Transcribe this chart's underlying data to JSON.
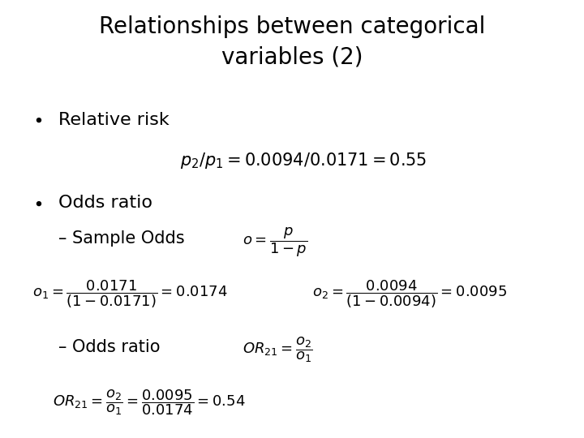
{
  "title_line1": "Relationships between categorical",
  "title_line2": "variables (2)",
  "title_fontsize": 20,
  "background_color": "#ffffff",
  "text_color": "#000000",
  "bullet_fontsize": 16,
  "formula_fontsize": 15,
  "sub_fontsize": 15,
  "small_formula_fontsize": 13,
  "bullet1": "Relative risk",
  "formula1": "$p_2/p_1 = 0.0094/0.0171 = 0.55$",
  "bullet2": "Odds ratio",
  "sub_bullet1": "– Sample Odds",
  "formula_sample_odds": "$o = \\dfrac{p}{1-p}$",
  "formula_o1": "$o_1 = \\dfrac{0.0171}{(1-0.0171)} = 0.0174$",
  "formula_o2": "$o_2 = \\dfrac{0.0094}{(1-0.0094)} = 0.0095$",
  "sub_bullet2": "– Odds ratio",
  "formula_OR_def": "$OR_{21} = \\dfrac{o_2}{o_1}$",
  "formula_OR_val": "$OR_{21} = \\dfrac{o_2}{o_1} = \\dfrac{0.0095}{0.0174} = 0.54$"
}
